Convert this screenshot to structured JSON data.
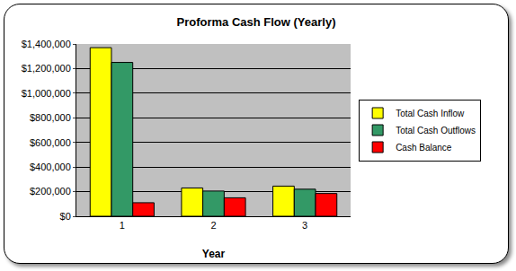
{
  "chart_data": {
    "type": "bar",
    "title": "Proforma Cash Flow (Yearly)",
    "x_label": "Year",
    "categories": [
      "1",
      "2",
      "3"
    ],
    "series": [
      {
        "name": "Total Cash Inflow",
        "color": "#ffff00",
        "values": [
          1370000,
          230000,
          245000
        ]
      },
      {
        "name": "Total Cash Outflows",
        "color": "#339966",
        "values": [
          1250000,
          205000,
          220000
        ]
      },
      {
        "name": "Cash Balance",
        "color": "#ff0000",
        "values": [
          110000,
          150000,
          185000
        ]
      }
    ],
    "ylim": [
      0,
      1400000
    ],
    "yticks": [
      {
        "value": 0,
        "label": "$0"
      },
      {
        "value": 200000,
        "label": "$200,000"
      },
      {
        "value": 400000,
        "label": "$400,000"
      },
      {
        "value": 600000,
        "label": "$600,000"
      },
      {
        "value": 800000,
        "label": "$800,000"
      },
      {
        "value": 1000000,
        "label": "$1,000,000"
      },
      {
        "value": 1200000,
        "label": "$1,200,000"
      },
      {
        "value": 1400000,
        "label": "$1,400,000"
      }
    ],
    "grid": true,
    "legend": "right"
  }
}
